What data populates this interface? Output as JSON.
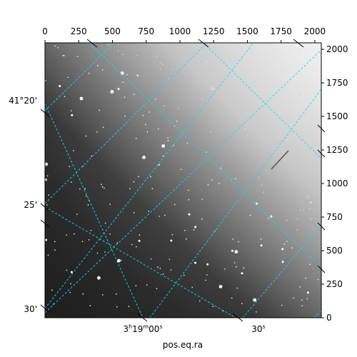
{
  "chart_data": {
    "type": "image",
    "xlabel": "pos.eq.ra",
    "pixel_axes": {
      "x_ticks": [
        0,
        250,
        500,
        750,
        1000,
        1250,
        1500,
        1750,
        2000
      ],
      "x_tick_labels": [
        "0",
        "250",
        "500",
        "750",
        "1000",
        "1250",
        "1500",
        "1750",
        "2000"
      ],
      "xlim": [
        0,
        2048
      ],
      "y_ticks": [
        0,
        250,
        500,
        750,
        1000,
        1250,
        1500,
        1750,
        2000
      ],
      "y_tick_labels": [
        "0",
        "250",
        "500",
        "750",
        "1000",
        "1250",
        "1500",
        "1750",
        "2000"
      ],
      "ylim": [
        0,
        2048
      ]
    },
    "ra_ticks": [
      {
        "id": "ra-1900",
        "hour": "3",
        "min": "19",
        "sec": "00",
        "label": "3h19m00s"
      },
      {
        "id": "ra-30s",
        "sec": "30",
        "label": "30s"
      }
    ],
    "dec_ticks": [
      {
        "id": "dec-20",
        "label": "41°20'"
      },
      {
        "id": "dec-25",
        "label": "25'"
      },
      {
        "id": "dec-30",
        "label": "30'"
      }
    ],
    "grid": true,
    "grid_color": "#00e5ee",
    "image_description": "grayscale star field, darker lower-left, brighter diffuse glow toward upper-right"
  },
  "colors": {
    "grid": "#00e5ee",
    "frame": "#000000",
    "dark_sky": "#141414",
    "bright_sky": "#e6e6e6"
  }
}
